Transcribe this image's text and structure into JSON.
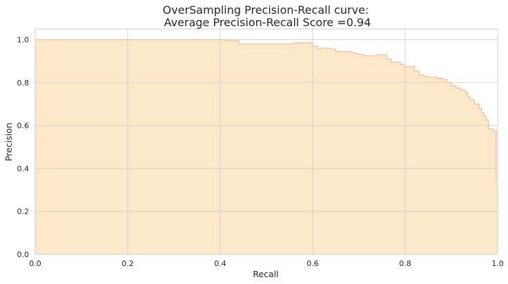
{
  "chart_data": {
    "type": "area",
    "title_lines": [
      "OverSampling Precision-Recall curve:",
      " Average Precision-Recall Score =0.94"
    ],
    "xlabel": "Recall",
    "ylabel": "Precision",
    "xlim": [
      0,
      1
    ],
    "ylim": [
      0,
      1.05
    ],
    "x_ticks": [
      0,
      0.2,
      0.4,
      0.6,
      0.8,
      1
    ],
    "x_tick_labels": [
      "0.0",
      "0.2",
      "0.4",
      "0.6",
      "0.8",
      "1.0"
    ],
    "y_ticks": [
      0,
      0.2,
      0.4,
      0.6,
      0.8,
      1
    ],
    "y_tick_labels": [
      "0.0",
      "0.2",
      "0.4",
      "0.6",
      "0.8",
      "1.0"
    ],
    "grid": true,
    "step": "post",
    "fill_color": "#fde9c9",
    "line_color": "#f2c2a8",
    "grid_color": "#d8d0c6",
    "frame_color": "#cccccc",
    "series": [
      {
        "points": [
          [
            0.0,
            1.0
          ],
          [
            0.41,
            0.995
          ],
          [
            0.44,
            0.98
          ],
          [
            0.56,
            0.985
          ],
          [
            0.6,
            0.97
          ],
          [
            0.61,
            0.96
          ],
          [
            0.64,
            0.955
          ],
          [
            0.65,
            0.945
          ],
          [
            0.68,
            0.94
          ],
          [
            0.69,
            0.935
          ],
          [
            0.7,
            0.93
          ],
          [
            0.71,
            0.925
          ],
          [
            0.74,
            0.93
          ],
          [
            0.76,
            0.91
          ],
          [
            0.77,
            0.895
          ],
          [
            0.79,
            0.885
          ],
          [
            0.8,
            0.875
          ],
          [
            0.82,
            0.855
          ],
          [
            0.83,
            0.835
          ],
          [
            0.84,
            0.83
          ],
          [
            0.85,
            0.825
          ],
          [
            0.87,
            0.82
          ],
          [
            0.88,
            0.815
          ],
          [
            0.89,
            0.8
          ],
          [
            0.9,
            0.785
          ],
          [
            0.91,
            0.775
          ],
          [
            0.92,
            0.765
          ],
          [
            0.93,
            0.755
          ],
          [
            0.935,
            0.735
          ],
          [
            0.94,
            0.72
          ],
          [
            0.95,
            0.7
          ],
          [
            0.96,
            0.68
          ],
          [
            0.965,
            0.66
          ],
          [
            0.97,
            0.645
          ],
          [
            0.975,
            0.625
          ],
          [
            0.98,
            0.585
          ],
          [
            0.99,
            0.575
          ],
          [
            0.997,
            0.35
          ],
          [
            1.0,
            0.35
          ]
        ]
      }
    ]
  }
}
